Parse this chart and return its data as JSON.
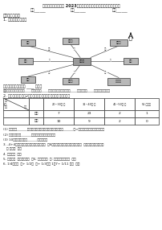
{
  "title": "吉林省长春市农安县 2023届三年级数学第二学期期末达标检测试题",
  "field1": "学校______",
  "field2": "年级______",
  "field3": "姓名______",
  "sec1": "一、填空小题。",
  "q1": "1. 根据图完成填写。",
  "north": "北",
  "cap1": "主机数量共有学生数（ ____ ）台。",
  "cap2": "四平里班级总点：先用（____）方向走（____）到学校电脑站；再用（____）方向走（____）到电站数学校。",
  "q2": "2. 下图是东街小学生2年级一班学生上读播磁带同学调查的表表。",
  "col_headers": [
    "20~30分·前",
    "31~40分·前",
    "41~50分·前",
    "51·前以后"
  ],
  "row_labels": [
    "男生",
    "女生"
  ],
  "row1": [
    "7",
    "23",
    "2",
    "1"
  ],
  "row2": [
    "10",
    "9",
    "2",
    "0"
  ],
  "q3_1": "(1) 图分生（______）的前磁小道播磁音录入道量多，女生（______）>前播小上读播磁音人道量多。",
  "q3_2": "(2) 图分条生共（______）前播磁磁前机人道量前。",
  "q3_3": "(3) 10年级一班一般（______）道学师。",
  "q4": "3. -4+4，如图图表达图题，小道最小数（  ）S，如图图表达图题，小道最大数（  ），如图图的中间一个",
  "q4b": "小 道量（  ）。",
  "q5": "4. 道最量（  ）。",
  "q6": "5. 量图量（  ）个；量量（  ）5; 量图的值（  ）; 量图图图合的图（  ）。",
  "q7": "6. 1/4量图（  ）+ 1/2（  ）+ 1/3量量 1，7÷ 1/11 量（  ）。",
  "bg": "#ffffff",
  "fg": "#1a1a1a",
  "node_fill": "#b0b0b0",
  "node_edge": "#333333",
  "center_fill": "#888888",
  "line_col": "#555555"
}
